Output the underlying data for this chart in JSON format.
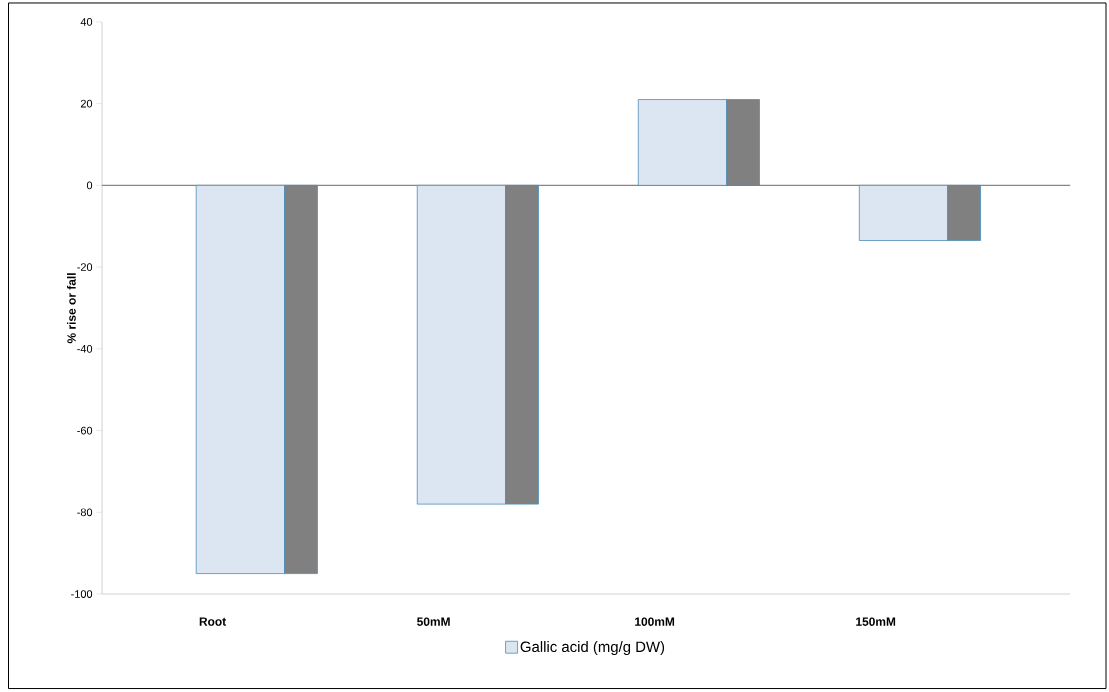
{
  "chart_data": {
    "type": "bar",
    "ylabel": "% rise or fall",
    "categories": [
      "Root",
      "50mM",
      "100mM",
      "150mM"
    ],
    "series": [
      {
        "name": "Gallic acid (mg/g DW)",
        "color": "#dce6f2",
        "values": [
          -95,
          -78,
          21,
          -13.5
        ]
      },
      {
        "color": "#808080",
        "values": [
          -95,
          -78,
          21,
          -13.5
        ]
      }
    ],
    "ylim": [
      -100,
      40
    ],
    "yticks": [
      -100,
      -80,
      -60,
      -40,
      -20,
      0,
      20,
      40
    ],
    "ref_lines": [
      {
        "axis": "y",
        "value": 0,
        "color": "#868686"
      }
    ],
    "grid": false,
    "legend": "bottom"
  }
}
